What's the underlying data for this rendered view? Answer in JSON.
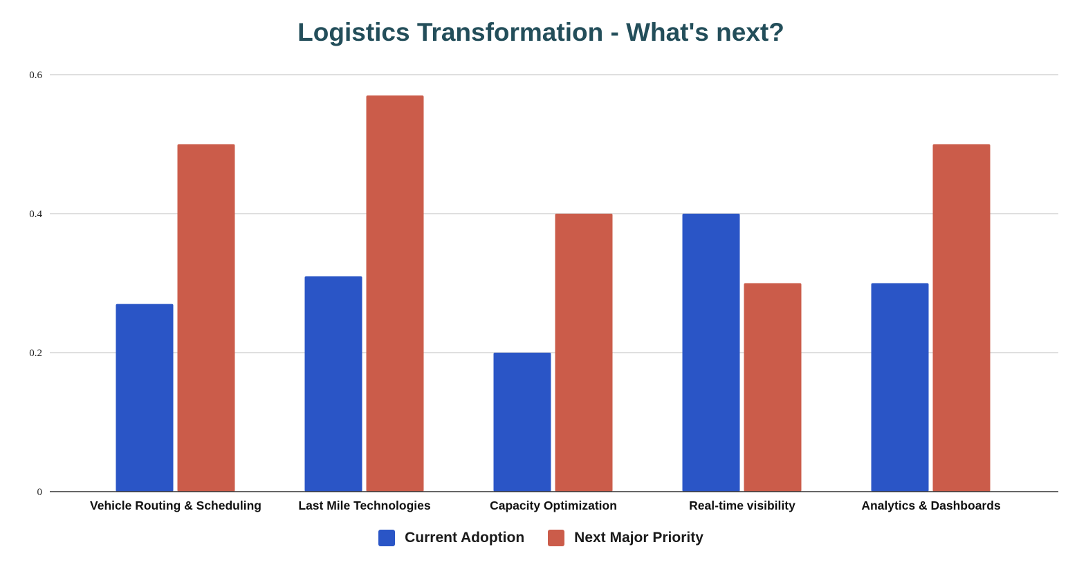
{
  "chart_data": {
    "type": "bar",
    "title": "Logistics Transformation - What's next?",
    "xlabel": "",
    "ylabel": "",
    "ylim": [
      0,
      0.6
    ],
    "yticks": [
      "0",
      "0.2",
      "0.4",
      "0.6"
    ],
    "ytick_values": [
      0,
      0.2,
      0.4,
      0.6
    ],
    "grid": true,
    "legend_position": "bottom",
    "categories": [
      "Vehicle Routing & Scheduling",
      "Last Mile Technologies",
      "Capacity Optimization",
      "Real-time visibility",
      "Analytics & Dashboards"
    ],
    "series": [
      {
        "name": "Current Adoption",
        "color": "#2a55c6",
        "values": [
          0.27,
          0.31,
          0.2,
          0.4,
          0.3
        ]
      },
      {
        "name": "Next Major Priority",
        "color": "#cb5c4a",
        "values": [
          0.5,
          0.57,
          0.4,
          0.3,
          0.5
        ]
      }
    ]
  }
}
